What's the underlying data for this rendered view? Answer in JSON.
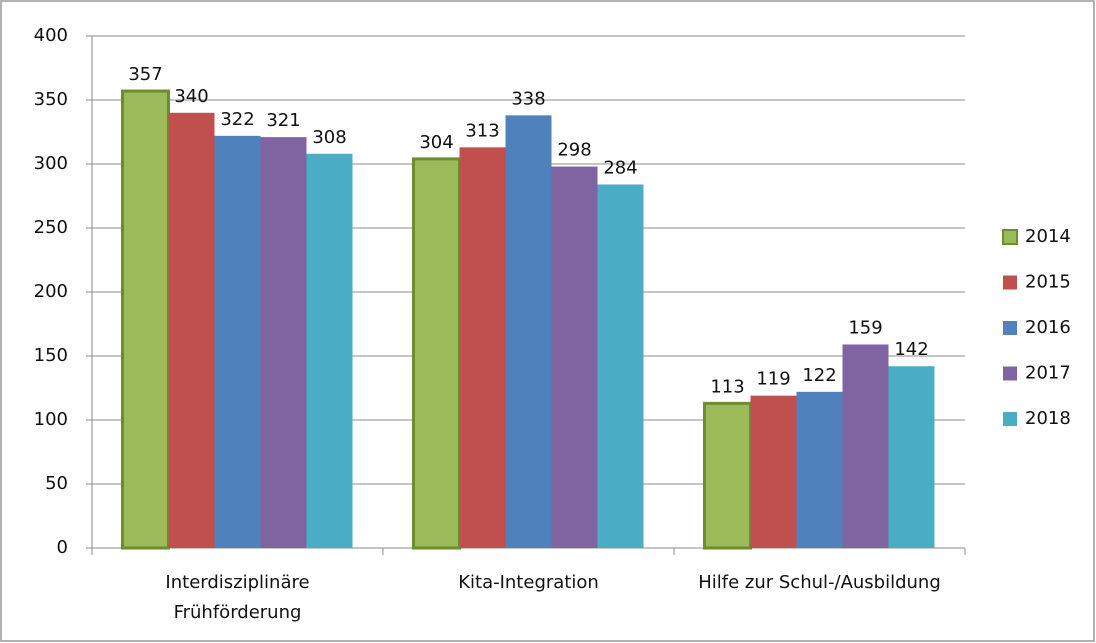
{
  "chart_data": {
    "type": "bar",
    "categories": [
      "Interdisziplinäre Frühförderung",
      "Kita-Integration",
      "Hilfe zur Schul-/Ausbildung"
    ],
    "series": [
      {
        "name": "2014",
        "color": "#9bbb59",
        "values": [
          357,
          304,
          113
        ]
      },
      {
        "name": "2015",
        "color": "#c0504d",
        "values": [
          340,
          313,
          119
        ]
      },
      {
        "name": "2016",
        "color": "#4f81bd",
        "values": [
          322,
          338,
          122
        ]
      },
      {
        "name": "2017",
        "color": "#8064a2",
        "values": [
          321,
          298,
          159
        ]
      },
      {
        "name": "2018",
        "color": "#4bacc6",
        "values": [
          308,
          284,
          142
        ]
      }
    ],
    "ylim": [
      0,
      400
    ],
    "yticks": [
      0,
      50,
      100,
      150,
      200,
      250,
      300,
      350,
      400
    ],
    "grid": true,
    "legend": "right"
  }
}
